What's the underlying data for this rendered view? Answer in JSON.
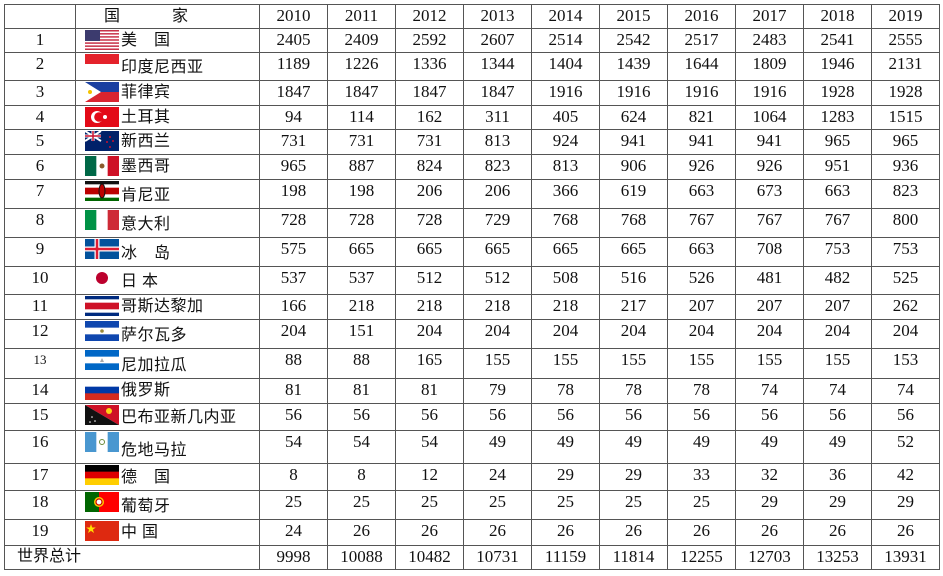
{
  "header": {
    "country_label": "国　家",
    "years": [
      "2010",
      "2011",
      "2012",
      "2013",
      "2014",
      "2015",
      "2016",
      "2017",
      "2018",
      "2019"
    ]
  },
  "rows": [
    {
      "rank": "1",
      "country": "美　国",
      "flag": "us",
      "values": [
        2405,
        2409,
        2592,
        2607,
        2514,
        2542,
        2517,
        2483,
        2541,
        2555
      ]
    },
    {
      "rank": "2",
      "country": "印度尼西亚",
      "flag": "id",
      "values": [
        1189,
        1226,
        1336,
        1344,
        1404,
        1439,
        1644,
        1809,
        1946,
        2131
      ]
    },
    {
      "rank": "3",
      "country": "菲律宾",
      "flag": "ph",
      "values": [
        1847,
        1847,
        1847,
        1847,
        1916,
        1916,
        1916,
        1916,
        1928,
        1928
      ]
    },
    {
      "rank": "4",
      "country": "土耳其",
      "flag": "tr",
      "values": [
        94,
        114,
        162,
        311,
        405,
        624,
        821,
        1064,
        1283,
        1515
      ]
    },
    {
      "rank": "5",
      "country": "新西兰",
      "flag": "nz",
      "values": [
        731,
        731,
        731,
        813,
        924,
        941,
        941,
        941,
        965,
        965
      ]
    },
    {
      "rank": "6",
      "country": "墨西哥",
      "flag": "mx",
      "values": [
        965,
        887,
        824,
        823,
        813,
        906,
        926,
        926,
        951,
        936
      ]
    },
    {
      "rank": "7",
      "country": "肯尼亚",
      "flag": "ke",
      "values": [
        198,
        198,
        206,
        206,
        366,
        619,
        663,
        673,
        663,
        823
      ]
    },
    {
      "rank": "8",
      "country": "意大利",
      "flag": "it",
      "values": [
        728,
        728,
        728,
        729,
        768,
        768,
        767,
        767,
        767,
        800
      ]
    },
    {
      "rank": "9",
      "country": "冰　岛",
      "flag": "is",
      "values": [
        575,
        665,
        665,
        665,
        665,
        665,
        663,
        708,
        753,
        753
      ]
    },
    {
      "rank": "10",
      "country": "日 本",
      "flag": "jp",
      "values": [
        537,
        537,
        512,
        512,
        508,
        516,
        526,
        481,
        482,
        525
      ]
    },
    {
      "rank": "11",
      "country": "哥斯达黎加",
      "flag": "cr",
      "values": [
        166,
        218,
        218,
        218,
        218,
        217,
        207,
        207,
        207,
        262
      ]
    },
    {
      "rank": "12",
      "country": "萨尔瓦多",
      "flag": "sv",
      "values": [
        204,
        151,
        204,
        204,
        204,
        204,
        204,
        204,
        204,
        204
      ]
    },
    {
      "rank": "13",
      "country": "尼加拉瓜",
      "flag": "ni",
      "values": [
        88,
        88,
        165,
        155,
        155,
        155,
        155,
        155,
        155,
        153
      ]
    },
    {
      "rank": "14",
      "country": "俄罗斯",
      "flag": "ru",
      "values": [
        81,
        81,
        81,
        79,
        78,
        78,
        78,
        74,
        74,
        74
      ]
    },
    {
      "rank": "15",
      "country": "巴布亚新几内亚",
      "flag": "pg",
      "values": [
        56,
        56,
        56,
        56,
        56,
        56,
        56,
        56,
        56,
        56
      ]
    },
    {
      "rank": "16",
      "country": "危地马拉",
      "flag": "gt",
      "values": [
        54,
        54,
        54,
        49,
        49,
        49,
        49,
        49,
        49,
        52
      ]
    },
    {
      "rank": "17",
      "country": "德　国",
      "flag": "de",
      "values": [
        8,
        8,
        12,
        24,
        29,
        29,
        33,
        32,
        36,
        42
      ]
    },
    {
      "rank": "18",
      "country": "葡萄牙",
      "flag": "pt",
      "values": [
        25,
        25,
        25,
        25,
        25,
        25,
        25,
        29,
        29,
        29
      ]
    },
    {
      "rank": "19",
      "country": "中 国",
      "flag": "cn",
      "values": [
        24,
        26,
        26,
        26,
        26,
        26,
        26,
        26,
        26,
        26
      ]
    }
  ],
  "total": {
    "label": "世界总计",
    "values": [
      9998,
      10088,
      10482,
      10731,
      11159,
      11814,
      12255,
      12703,
      13253,
      13931
    ]
  }
}
